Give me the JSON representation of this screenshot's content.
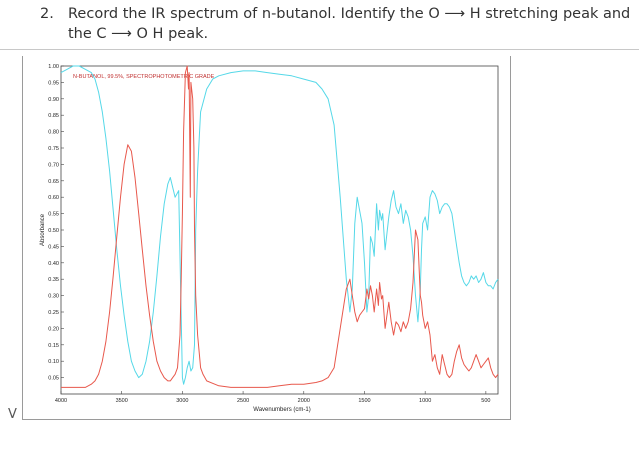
{
  "question": {
    "number": "2.",
    "line1": "Record the IR spectrum of n-butanol. Identify the O ⟶ H stretching peak and",
    "line2": "the C ⟶ O H  peak."
  },
  "cursor_glyph": "V",
  "chart_data": {
    "type": "line",
    "title": "N-BUTANOL, 99.5%, SPECTROPHOTOMETRIC GRADE",
    "xlabel": "Wavenumbers (cm-1)",
    "ylabel": "Absorbance",
    "xlim": [
      4000,
      400
    ],
    "ylim": [
      0,
      1.0
    ],
    "x_ticks": [
      4000,
      3500,
      3000,
      2500,
      2000,
      1500,
      1000,
      500
    ],
    "y_ticks": [
      "1.00",
      "0.95",
      "0.90",
      "0.85",
      "0.80",
      "0.75",
      "0.70",
      "0.65",
      "0.60",
      "0.55",
      "0.50",
      "0.45",
      "0.40",
      "0.35",
      "0.30",
      "0.25",
      "0.20",
      "0.15",
      "0.10",
      "0.05"
    ],
    "grid": false,
    "series": [
      {
        "color": "#55d8e8",
        "x": [
          4000,
          3950,
          3900,
          3850,
          3800,
          3750,
          3720,
          3690,
          3660,
          3630,
          3600,
          3570,
          3540,
          3510,
          3480,
          3450,
          3420,
          3390,
          3360,
          3330,
          3300,
          3270,
          3240,
          3210,
          3180,
          3150,
          3120,
          3100,
          3060,
          3030,
          3000,
          2990,
          2975,
          2960,
          2945,
          2930,
          2915,
          2900,
          2890,
          2875,
          2860,
          2850,
          2800,
          2750,
          2700,
          2600,
          2500,
          2400,
          2300,
          2200,
          2100,
          2000,
          1900,
          1850,
          1800,
          1750,
          1700,
          1650,
          1620,
          1600,
          1580,
          1560,
          1540,
          1520,
          1500,
          1480,
          1465,
          1450,
          1435,
          1420,
          1400,
          1385,
          1375,
          1360,
          1350,
          1330,
          1300,
          1280,
          1260,
          1240,
          1220,
          1200,
          1180,
          1160,
          1140,
          1120,
          1100,
          1080,
          1060,
          1040,
          1030,
          1020,
          1000,
          980,
          960,
          940,
          920,
          900,
          880,
          860,
          840,
          820,
          800,
          780,
          760,
          740,
          720,
          700,
          680,
          660,
          640,
          620,
          600,
          580,
          560,
          540,
          520,
          500,
          480,
          460,
          440,
          420,
          400
        ],
        "y": [
          0.98,
          0.99,
          1.0,
          1.0,
          0.99,
          0.98,
          0.96,
          0.92,
          0.86,
          0.78,
          0.68,
          0.56,
          0.44,
          0.33,
          0.24,
          0.16,
          0.1,
          0.07,
          0.05,
          0.06,
          0.1,
          0.16,
          0.25,
          0.36,
          0.48,
          0.58,
          0.64,
          0.66,
          0.6,
          0.62,
          0.05,
          0.03,
          0.05,
          0.08,
          0.1,
          0.07,
          0.08,
          0.15,
          0.5,
          0.68,
          0.79,
          0.86,
          0.93,
          0.96,
          0.97,
          0.98,
          0.985,
          0.985,
          0.98,
          0.975,
          0.97,
          0.96,
          0.95,
          0.93,
          0.9,
          0.82,
          0.6,
          0.35,
          0.25,
          0.32,
          0.52,
          0.6,
          0.56,
          0.52,
          0.4,
          0.25,
          0.3,
          0.48,
          0.46,
          0.42,
          0.58,
          0.5,
          0.56,
          0.53,
          0.55,
          0.44,
          0.54,
          0.59,
          0.62,
          0.57,
          0.55,
          0.58,
          0.52,
          0.56,
          0.54,
          0.5,
          0.42,
          0.3,
          0.22,
          0.32,
          0.44,
          0.52,
          0.54,
          0.5,
          0.6,
          0.62,
          0.61,
          0.59,
          0.55,
          0.57,
          0.58,
          0.58,
          0.57,
          0.55,
          0.5,
          0.45,
          0.4,
          0.36,
          0.34,
          0.33,
          0.34,
          0.36,
          0.35,
          0.36,
          0.34,
          0.35,
          0.37,
          0.34,
          0.33,
          0.33,
          0.32,
          0.34,
          0.35
        ]
      },
      {
        "color": "#e8584c",
        "x": [
          4000,
          3950,
          3900,
          3850,
          3800,
          3750,
          3720,
          3690,
          3660,
          3630,
          3600,
          3570,
          3540,
          3510,
          3480,
          3450,
          3420,
          3390,
          3360,
          3330,
          3300,
          3270,
          3240,
          3210,
          3180,
          3150,
          3120,
          3100,
          3080,
          3060,
          3040,
          3020,
          3010,
          3000,
          2990,
          2975,
          2960,
          2950,
          2945,
          2935,
          2930,
          2915,
          2905,
          2900,
          2890,
          2875,
          2860,
          2850,
          2830,
          2800,
          2700,
          2600,
          2500,
          2400,
          2300,
          2200,
          2100,
          2000,
          1900,
          1850,
          1800,
          1750,
          1700,
          1650,
          1620,
          1600,
          1580,
          1560,
          1540,
          1520,
          1500,
          1480,
          1465,
          1450,
          1435,
          1420,
          1400,
          1385,
          1375,
          1360,
          1350,
          1330,
          1300,
          1280,
          1260,
          1240,
          1220,
          1200,
          1180,
          1160,
          1140,
          1120,
          1100,
          1080,
          1060,
          1040,
          1030,
          1020,
          1000,
          980,
          960,
          940,
          920,
          900,
          880,
          860,
          840,
          820,
          800,
          780,
          760,
          740,
          720,
          700,
          680,
          660,
          640,
          620,
          600,
          580,
          560,
          540,
          520,
          500,
          480,
          460,
          440,
          420,
          400
        ],
        "y": [
          0.02,
          0.02,
          0.02,
          0.02,
          0.02,
          0.03,
          0.04,
          0.06,
          0.1,
          0.16,
          0.25,
          0.36,
          0.48,
          0.6,
          0.7,
          0.76,
          0.74,
          0.66,
          0.55,
          0.44,
          0.33,
          0.24,
          0.16,
          0.1,
          0.07,
          0.05,
          0.04,
          0.04,
          0.05,
          0.06,
          0.08,
          0.18,
          0.35,
          0.55,
          0.8,
          0.98,
          1.0,
          0.93,
          0.98,
          0.6,
          0.95,
          0.9,
          0.75,
          0.5,
          0.3,
          0.18,
          0.12,
          0.08,
          0.06,
          0.04,
          0.025,
          0.02,
          0.02,
          0.02,
          0.02,
          0.025,
          0.03,
          0.03,
          0.035,
          0.04,
          0.05,
          0.08,
          0.2,
          0.32,
          0.35,
          0.3,
          0.25,
          0.22,
          0.24,
          0.25,
          0.26,
          0.32,
          0.29,
          0.33,
          0.3,
          0.25,
          0.32,
          0.27,
          0.34,
          0.29,
          0.3,
          0.2,
          0.28,
          0.22,
          0.18,
          0.22,
          0.21,
          0.19,
          0.22,
          0.2,
          0.22,
          0.26,
          0.34,
          0.5,
          0.47,
          0.3,
          0.28,
          0.24,
          0.2,
          0.22,
          0.18,
          0.1,
          0.12,
          0.08,
          0.06,
          0.12,
          0.09,
          0.06,
          0.05,
          0.06,
          0.1,
          0.13,
          0.15,
          0.11,
          0.09,
          0.08,
          0.07,
          0.08,
          0.1,
          0.12,
          0.1,
          0.08,
          0.09,
          0.1,
          0.11,
          0.08,
          0.06,
          0.05,
          0.06
        ]
      }
    ]
  }
}
